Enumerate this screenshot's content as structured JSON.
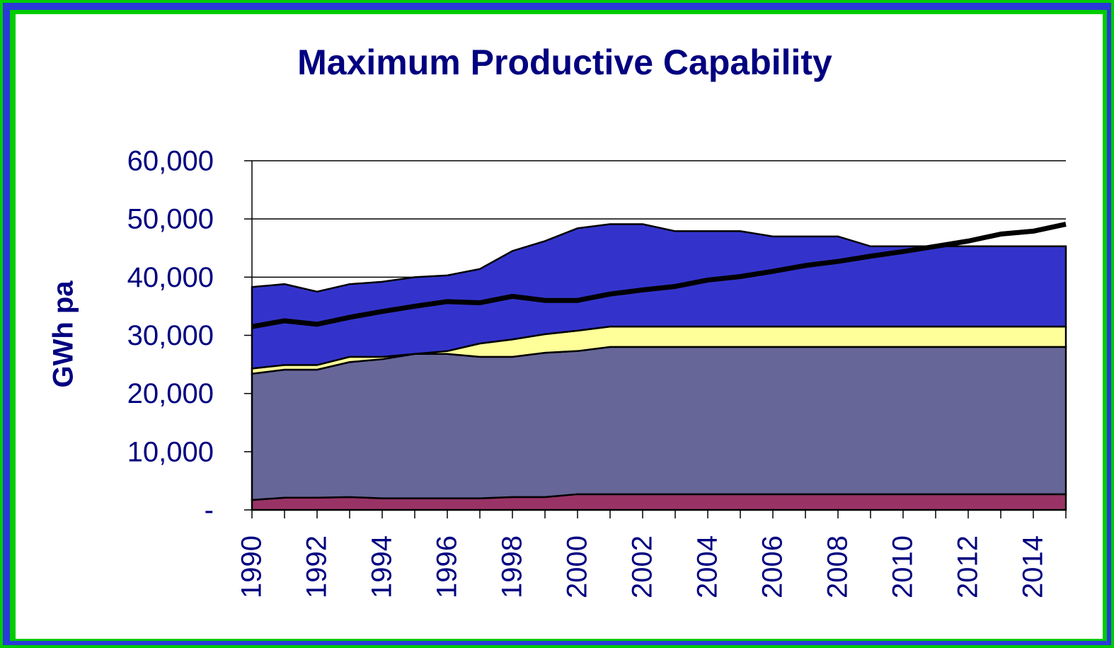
{
  "chart_data": {
    "type": "area",
    "title": "Maximum Productive Capability",
    "y_label": "GWh pa",
    "categories": [
      1990,
      null,
      1992,
      null,
      1994,
      null,
      1996,
      null,
      1998,
      null,
      2000,
      null,
      2002,
      null,
      2004,
      null,
      2006,
      null,
      2008,
      null,
      2010,
      null,
      2012,
      null,
      2014,
      null
    ],
    "series": [
      {
        "color": "#993366",
        "values": [
          1700,
          2100,
          2100,
          2200,
          2000,
          2000,
          2000,
          2000,
          2200,
          2200,
          2700,
          2700,
          2700,
          2700,
          2700,
          2700,
          2700,
          2700,
          2700,
          2700,
          2700,
          2700,
          2700,
          2700,
          2700,
          2700
        ]
      },
      {
        "color": "#666699",
        "values": [
          21700,
          22000,
          22000,
          23200,
          23900,
          24800,
          24800,
          24300,
          24100,
          24800,
          24600,
          25300,
          25300,
          25300,
          25300,
          25300,
          25300,
          25300,
          25300,
          25300,
          25300,
          25300,
          25300,
          25300,
          25300,
          25300
        ]
      },
      {
        "color": "#ffff99",
        "values": [
          900,
          800,
          800,
          900,
          400,
          0,
          500,
          2300,
          3000,
          3200,
          3500,
          3500,
          3500,
          3500,
          3500,
          3500,
          3500,
          3500,
          3500,
          3500,
          3500,
          3500,
          3500,
          3500,
          3500,
          3500
        ]
      },
      {
        "color": "#3333cc",
        "values": [
          14000,
          13900,
          12600,
          12500,
          12900,
          13200,
          13000,
          12800,
          15200,
          16000,
          17600,
          17600,
          17600,
          16400,
          16400,
          16400,
          15500,
          15500,
          15500,
          13800,
          13800,
          13800,
          13800,
          13800,
          13800,
          13800
        ]
      },
      {
        "type": "line",
        "color": "#000000",
        "values": [
          31500,
          32500,
          31900,
          33100,
          34100,
          35000,
          35800,
          35600,
          36700,
          36000,
          36000,
          37100,
          37800,
          38400,
          39500,
          40100,
          41000,
          42000,
          42700,
          43600,
          44400,
          45300,
          46200,
          47400,
          47900,
          49100
        ]
      }
    ],
    "ylim": [
      0,
      60000
    ],
    "yticks": [
      {
        "value": 0,
        "label": "-"
      },
      {
        "value": 10000,
        "label": "10,000"
      },
      {
        "value": 20000,
        "label": "20,000"
      },
      {
        "value": 30000,
        "label": "30,000"
      },
      {
        "value": 40000,
        "label": "40,000"
      },
      {
        "value": 50000,
        "label": "50,000"
      },
      {
        "value": 60000,
        "label": "60,000"
      }
    ],
    "grid": true
  }
}
